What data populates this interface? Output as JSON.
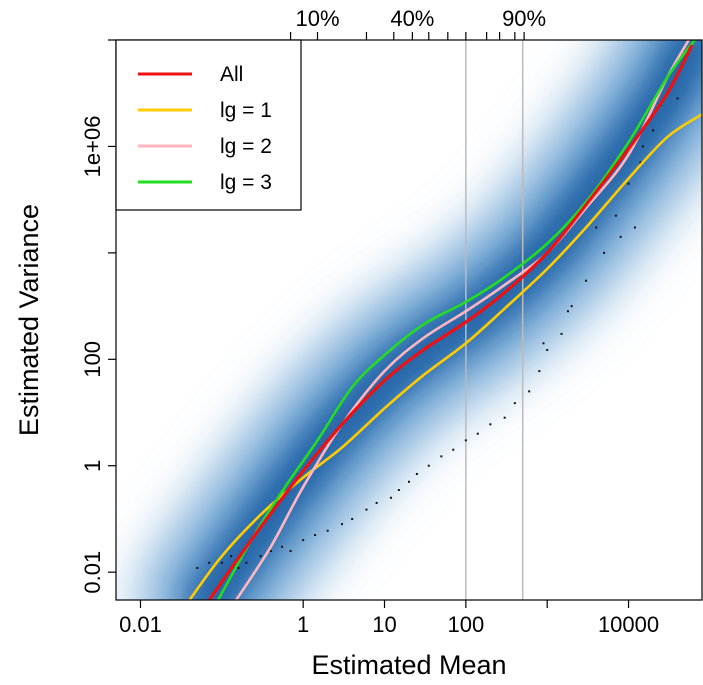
{
  "chart_data": {
    "type": "line",
    "title": "",
    "xlabel": "Estimated Mean",
    "ylabel": "Estimated Variance",
    "x_scale": "log10",
    "y_scale": "log10",
    "xlim": [
      0.005,
      80000
    ],
    "ylim": [
      0.003,
      100000000
    ],
    "x_ticks": [
      {
        "value": 0.01,
        "label": "0.01"
      },
      {
        "value": 1,
        "label": "1"
      },
      {
        "value": 10,
        "label": "10"
      },
      {
        "value": 100,
        "label": "100"
      },
      {
        "value": 10000,
        "label": "10000"
      }
    ],
    "y_ticks": [
      {
        "value": 0.01,
        "label": "0.01"
      },
      {
        "value": 1,
        "label": "1"
      },
      {
        "value": 100,
        "label": "100"
      },
      {
        "value": 1000000,
        "label": "1e+06"
      }
    ],
    "x_minor_ticks": [
      1000,
      100000
    ],
    "y_minor_ticks": [
      10000,
      100000000
    ],
    "top_axis_quantile_ticks": [
      {
        "value": 1.5,
        "label": "10%"
      },
      {
        "value": 22,
        "label": "40%"
      },
      {
        "value": 520,
        "label": "90%"
      }
    ],
    "top_axis_minor_ticks": [
      0.7,
      6,
      13,
      35,
      60,
      100,
      180,
      260,
      400
    ],
    "reference_lines_x": [
      100,
      500
    ],
    "density_background": "blue smoothScatter density cloud along the diagonal",
    "series": [
      {
        "name": "All",
        "color": "#ee1111",
        "x": [
          0.07,
          0.2,
          0.5,
          1,
          3,
          10,
          30,
          100,
          300,
          1000,
          3000,
          10000,
          30000,
          60000
        ],
        "y": [
          0.003,
          0.03,
          0.2,
          0.8,
          6,
          40,
          150,
          500,
          1800,
          10000,
          80000,
          900000,
          10000000,
          80000000
        ]
      },
      {
        "name": "lg = 1",
        "color": "#ffcc00",
        "x": [
          0.04,
          0.1,
          0.3,
          1,
          3,
          10,
          30,
          100,
          300,
          1000,
          3000,
          10000,
          30000,
          80000
        ],
        "y": [
          0.003,
          0.02,
          0.12,
          0.6,
          2.2,
          12,
          50,
          200,
          900,
          5000,
          30000,
          250000,
          1500000,
          4000000
        ]
      },
      {
        "name": "lg = 2",
        "color": "#ffb6c1",
        "x": [
          0.15,
          0.4,
          1,
          3,
          10,
          30,
          100,
          300,
          1000,
          3000,
          10000,
          30000,
          55000
        ],
        "y": [
          0.003,
          0.03,
          0.4,
          6,
          60,
          250,
          800,
          2500,
          10000,
          70000,
          700000,
          20000000,
          100000000
        ]
      },
      {
        "name": "lg = 3",
        "color": "#22dd22",
        "x": [
          0.09,
          0.25,
          0.6,
          1.5,
          4,
          10,
          30,
          100,
          300,
          1000,
          3000,
          10000,
          30000,
          65000
        ],
        "y": [
          0.003,
          0.05,
          0.4,
          3,
          30,
          120,
          450,
          1200,
          3500,
          15000,
          90000,
          1200000,
          20000000,
          100000000
        ]
      }
    ],
    "scatter_points": [
      [
        0.05,
        0.012
      ],
      [
        0.07,
        0.015
      ],
      [
        0.1,
        0.015
      ],
      [
        0.13,
        0.02
      ],
      [
        0.16,
        0.012
      ],
      [
        0.2,
        0.015
      ],
      [
        0.3,
        0.02
      ],
      [
        0.4,
        0.025
      ],
      [
        0.55,
        0.03
      ],
      [
        0.7,
        0.025
      ],
      [
        1,
        0.04
      ],
      [
        1.4,
        0.05
      ],
      [
        2,
        0.06
      ],
      [
        3,
        0.08
      ],
      [
        4,
        0.1
      ],
      [
        6,
        0.15
      ],
      [
        8,
        0.2
      ],
      [
        12,
        0.25
      ],
      [
        15,
        0.35
      ],
      [
        20,
        0.5
      ],
      [
        25,
        0.7
      ],
      [
        35,
        1
      ],
      [
        50,
        1.5
      ],
      [
        70,
        2
      ],
      [
        100,
        3
      ],
      [
        140,
        4
      ],
      [
        200,
        6
      ],
      [
        300,
        8
      ],
      [
        400,
        15
      ],
      [
        600,
        25
      ],
      [
        800,
        60
      ],
      [
        1000,
        150
      ],
      [
        1500,
        300
      ],
      [
        2000,
        1000
      ],
      [
        3000,
        3000
      ],
      [
        5000,
        10000
      ],
      [
        7000,
        50000
      ],
      [
        10000,
        200000
      ],
      [
        14000,
        500000
      ],
      [
        20000,
        2000000
      ],
      [
        25000,
        6000000
      ],
      [
        30000,
        10000000
      ],
      [
        15000,
        1000000
      ],
      [
        12000,
        30000
      ],
      [
        8000,
        20000
      ],
      [
        40000,
        8000000
      ],
      [
        35000,
        15000000
      ],
      [
        1800,
        800
      ],
      [
        900,
        200
      ],
      [
        4000,
        30000
      ]
    ]
  }
}
